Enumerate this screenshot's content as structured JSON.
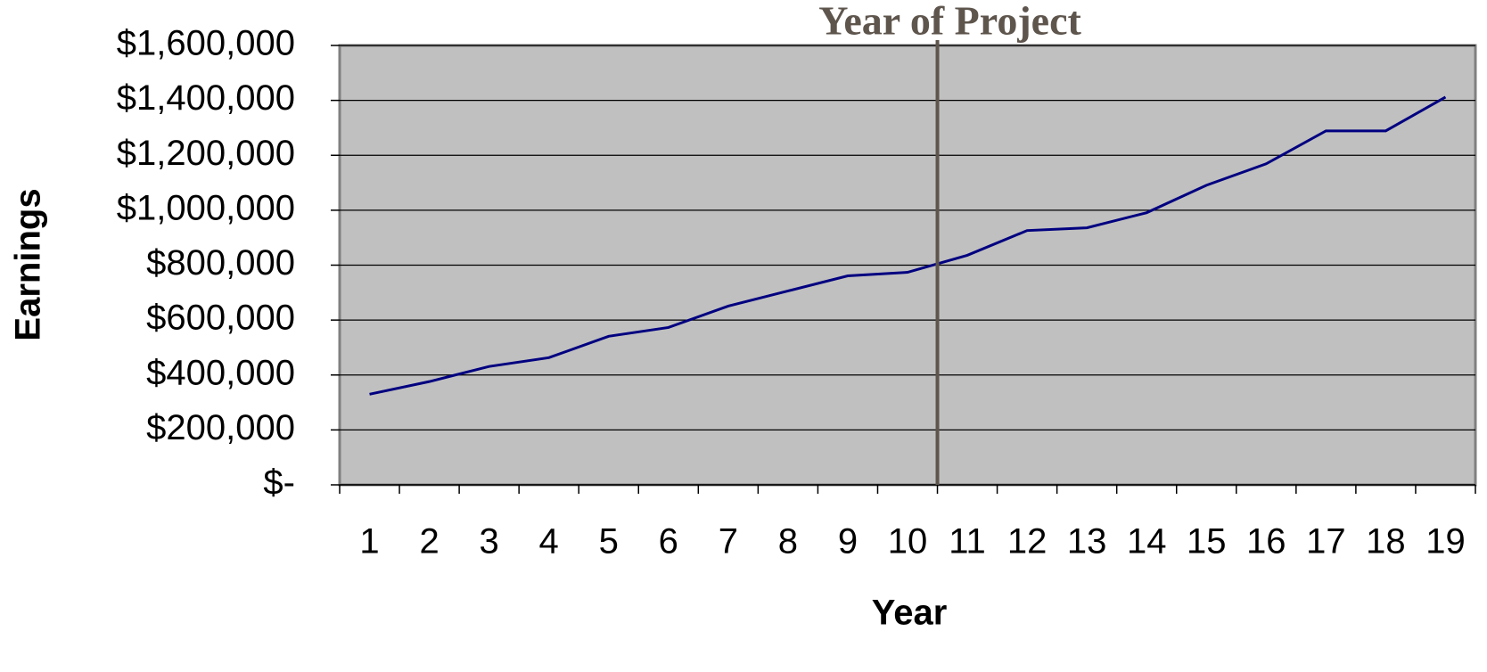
{
  "chart_data": {
    "type": "line",
    "annotation": {
      "text": "Year of Project",
      "x": 10.5,
      "color": "#5e554d"
    },
    "x_label": "Year",
    "y_label": "Earnings",
    "categories": [
      "1",
      "2",
      "3",
      "4",
      "5",
      "6",
      "7",
      "8",
      "9",
      "10",
      "11",
      "12",
      "13",
      "14",
      "15",
      "16",
      "17",
      "18",
      "19"
    ],
    "values": [
      330000,
      376000,
      431000,
      463000,
      541000,
      573000,
      651000,
      706000,
      761000,
      774000,
      836000,
      926000,
      936000,
      991000,
      1091000,
      1169000,
      1289000,
      1289000,
      1412000
    ],
    "color": "#000080",
    "plot_background": "#c0c0c0",
    "ylim": [
      0,
      1600000
    ],
    "yticks": [
      {
        "value": 0,
        "label": "$-"
      },
      {
        "value": 200000,
        "label": "$200,000"
      },
      {
        "value": 400000,
        "label": "$400,000"
      },
      {
        "value": 600000,
        "label": "$600,000"
      },
      {
        "value": 800000,
        "label": "$800,000"
      },
      {
        "value": 1000000,
        "label": "$1,000,000"
      },
      {
        "value": 1200000,
        "label": "$1,200,000"
      },
      {
        "value": 1400000,
        "label": "$1,400,000"
      },
      {
        "value": 1600000,
        "label": "$1,600,000"
      }
    ],
    "grid": true
  }
}
